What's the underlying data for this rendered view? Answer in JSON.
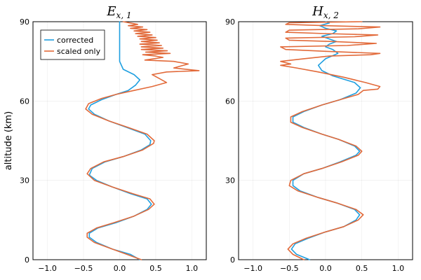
{
  "chart_data": [
    {
      "type": "line",
      "title": "E",
      "title_subscript": "x, 1",
      "xlabel": "",
      "ylabel": "altitude (km)",
      "xlim": [
        -1.2,
        1.2
      ],
      "ylim": [
        0,
        90
      ],
      "xticks": [
        -1.0,
        -0.5,
        0.0,
        0.5,
        1.0
      ],
      "xtick_labels": [
        "−1.0",
        "−0.5",
        "0.0",
        "0.5",
        "1.0"
      ],
      "yticks": [
        0,
        30,
        60,
        90
      ],
      "ytick_labels": [
        "0",
        "30",
        "60",
        "90"
      ],
      "grid": true,
      "legend": {
        "placement": "top-left",
        "entries": [
          "corrected",
          "scaled only"
        ]
      },
      "series": [
        {
          "name": "corrected",
          "color": "#1f9fe0",
          "points": [
            [
              0.28,
              0
            ],
            [
              0.15,
              2
            ],
            [
              -0.1,
              4
            ],
            [
              -0.32,
              6.5
            ],
            [
              -0.42,
              8.5
            ],
            [
              -0.42,
              10
            ],
            [
              -0.3,
              12
            ],
            [
              -0.05,
              14
            ],
            [
              0.2,
              16.5
            ],
            [
              0.38,
              19
            ],
            [
              0.44,
              21
            ],
            [
              0.38,
              23
            ],
            [
              0.15,
              25
            ],
            [
              -0.1,
              27.5
            ],
            [
              -0.32,
              30
            ],
            [
              -0.42,
              32
            ],
            [
              -0.38,
              34.5
            ],
            [
              -0.2,
              37
            ],
            [
              0.05,
              39
            ],
            [
              0.3,
              41.5
            ],
            [
              0.42,
              43.5
            ],
            [
              0.43,
              45
            ],
            [
              0.35,
              47.5
            ],
            [
              0.1,
              50
            ],
            [
              -0.15,
              52.5
            ],
            [
              -0.35,
              55
            ],
            [
              -0.43,
              57
            ],
            [
              -0.4,
              58.5
            ],
            [
              -0.25,
              60.5
            ],
            [
              -0.05,
              62.5
            ],
            [
              0.12,
              64
            ],
            [
              0.22,
              66
            ],
            [
              0.28,
              68
            ],
            [
              0.2,
              70
            ],
            [
              0.05,
              72
            ],
            [
              0.0,
              75
            ],
            [
              0.0,
              80
            ],
            [
              0.0,
              85
            ],
            [
              0.0,
              90
            ]
          ]
        },
        {
          "name": "scaled only",
          "color": "#e26a3a",
          "points": [
            [
              0.3,
              0
            ],
            [
              0.1,
              2
            ],
            [
              -0.15,
              4.5
            ],
            [
              -0.35,
              6.5
            ],
            [
              -0.45,
              8.5
            ],
            [
              -0.45,
              10
            ],
            [
              -0.32,
              12
            ],
            [
              -0.08,
              14
            ],
            [
              0.2,
              16.5
            ],
            [
              0.4,
              19
            ],
            [
              0.48,
              21
            ],
            [
              0.42,
              23
            ],
            [
              0.18,
              25
            ],
            [
              -0.1,
              27.5
            ],
            [
              -0.35,
              30
            ],
            [
              -0.45,
              32.5
            ],
            [
              -0.4,
              34.5
            ],
            [
              -0.22,
              37
            ],
            [
              0.05,
              39
            ],
            [
              0.32,
              41.5
            ],
            [
              0.47,
              44
            ],
            [
              0.48,
              45
            ],
            [
              0.38,
              47.5
            ],
            [
              0.12,
              50
            ],
            [
              -0.15,
              52.5
            ],
            [
              -0.38,
              55
            ],
            [
              -0.47,
              57
            ],
            [
              -0.43,
              59
            ],
            [
              -0.25,
              61
            ],
            [
              -0.05,
              62.5
            ],
            [
              0.2,
              64
            ],
            [
              0.45,
              65.5
            ],
            [
              0.65,
              67
            ],
            [
              0.55,
              68.5
            ],
            [
              0.45,
              70
            ],
            [
              0.65,
              71
            ],
            [
              1.1,
              71.5
            ],
            [
              0.75,
              72.5
            ],
            [
              0.95,
              74
            ],
            [
              0.75,
              75
            ],
            [
              0.35,
              75.5
            ],
            [
              0.6,
              76.5
            ],
            [
              0.5,
              77
            ],
            [
              0.32,
              77.5
            ],
            [
              0.7,
              78
            ],
            [
              0.36,
              78.5
            ],
            [
              0.66,
              79
            ],
            [
              0.3,
              79.5
            ],
            [
              0.6,
              80
            ],
            [
              0.3,
              80.5
            ],
            [
              0.58,
              81
            ],
            [
              0.28,
              81.5
            ],
            [
              0.55,
              82
            ],
            [
              0.3,
              82.5
            ],
            [
              0.52,
              83
            ],
            [
              0.28,
              83.5
            ],
            [
              0.5,
              84
            ],
            [
              0.25,
              84.5
            ],
            [
              0.45,
              85
            ],
            [
              0.22,
              85.5
            ],
            [
              0.42,
              86
            ],
            [
              0.2,
              86.5
            ],
            [
              0.38,
              87
            ],
            [
              0.15,
              87.5
            ],
            [
              0.32,
              88
            ],
            [
              0.12,
              88.5
            ],
            [
              0.25,
              89
            ],
            [
              0.05,
              90
            ]
          ]
        }
      ]
    },
    {
      "type": "line",
      "title": "H",
      "title_subscript": "x, 2",
      "xlabel": "",
      "ylabel": "",
      "xlim": [
        -1.2,
        1.2
      ],
      "ylim": [
        0,
        90
      ],
      "xticks": [
        -1.0,
        -0.5,
        0.0,
        0.5,
        1.0
      ],
      "xtick_labels": [
        "−1.0",
        "−0.5",
        "0.0",
        "0.5",
        "1.0"
      ],
      "yticks": [
        0,
        30,
        60,
        90
      ],
      "ytick_labels": [
        "0",
        "30",
        "60",
        "90"
      ],
      "grid": true,
      "series": [
        {
          "name": "corrected",
          "color": "#1f9fe0",
          "points": [
            [
              -0.22,
              0
            ],
            [
              -0.4,
              2
            ],
            [
              -0.47,
              4
            ],
            [
              -0.42,
              6
            ],
            [
              -0.25,
              8
            ],
            [
              0.0,
              10.5
            ],
            [
              0.25,
              12.5
            ],
            [
              0.42,
              15
            ],
            [
              0.47,
              17
            ],
            [
              0.4,
              19
            ],
            [
              0.15,
              21.5
            ],
            [
              -0.1,
              23.5
            ],
            [
              -0.35,
              26
            ],
            [
              -0.45,
              28
            ],
            [
              -0.45,
              30
            ],
            [
              -0.3,
              32.5
            ],
            [
              -0.05,
              34.5
            ],
            [
              0.2,
              37
            ],
            [
              0.42,
              39.5
            ],
            [
              0.47,
              41
            ],
            [
              0.4,
              43
            ],
            [
              0.18,
              45.5
            ],
            [
              -0.05,
              47.5
            ],
            [
              -0.3,
              50
            ],
            [
              -0.45,
              52
            ],
            [
              -0.45,
              54
            ],
            [
              -0.3,
              56
            ],
            [
              -0.05,
              58.5
            ],
            [
              0.2,
              60.5
            ],
            [
              0.42,
              63
            ],
            [
              0.48,
              65
            ],
            [
              0.4,
              67
            ],
            [
              0.1,
              69.5
            ],
            [
              -0.05,
              71.5
            ],
            [
              -0.1,
              73.5
            ],
            [
              0.0,
              76
            ],
            [
              0.17,
              78
            ],
            [
              0.1,
              79.5
            ],
            [
              0.0,
              80.5
            ],
            [
              0.05,
              81.5
            ],
            [
              0.15,
              82.5
            ],
            [
              0.05,
              83.5
            ],
            [
              -0.05,
              84.5
            ],
            [
              0.1,
              85.5
            ],
            [
              0.15,
              86.5
            ],
            [
              0.0,
              87.5
            ],
            [
              -0.08,
              88.5
            ],
            [
              0.05,
              89.5
            ],
            [
              0.0,
              90
            ]
          ]
        },
        {
          "name": "scaled only",
          "color": "#e26a3a",
          "points": [
            [
              -0.3,
              0
            ],
            [
              -0.45,
              2
            ],
            [
              -0.52,
              4
            ],
            [
              -0.45,
              6
            ],
            [
              -0.28,
              8
            ],
            [
              0.0,
              10.5
            ],
            [
              0.25,
              12.5
            ],
            [
              0.45,
              15
            ],
            [
              0.52,
              17
            ],
            [
              0.42,
              19
            ],
            [
              0.15,
              21.5
            ],
            [
              -0.1,
              23.5
            ],
            [
              -0.38,
              26
            ],
            [
              -0.5,
              28
            ],
            [
              -0.48,
              30
            ],
            [
              -0.3,
              32.5
            ],
            [
              -0.05,
              34.5
            ],
            [
              0.22,
              37
            ],
            [
              0.45,
              39.5
            ],
            [
              0.5,
              41
            ],
            [
              0.42,
              43
            ],
            [
              0.18,
              45.5
            ],
            [
              -0.05,
              47.5
            ],
            [
              -0.32,
              50
            ],
            [
              -0.48,
              52
            ],
            [
              -0.48,
              54
            ],
            [
              -0.32,
              56
            ],
            [
              -0.05,
              58.5
            ],
            [
              0.2,
              60.5
            ],
            [
              0.45,
              62.5
            ],
            [
              0.52,
              64
            ],
            [
              0.72,
              64.5
            ],
            [
              0.75,
              65.5
            ],
            [
              0.55,
              67
            ],
            [
              0.25,
              69
            ],
            [
              -0.1,
              71
            ],
            [
              -0.4,
              72.5
            ],
            [
              -0.62,
              73.5
            ],
            [
              -0.48,
              74
            ],
            [
              -0.62,
              75
            ],
            [
              -0.3,
              76
            ],
            [
              0.05,
              77
            ],
            [
              0.62,
              77.5
            ],
            [
              0.75,
              78
            ],
            [
              0.0,
              78.8
            ],
            [
              -0.55,
              79.5
            ],
            [
              -0.62,
              80.5
            ],
            [
              0.3,
              81
            ],
            [
              0.7,
              81.8
            ],
            [
              0.1,
              82.5
            ],
            [
              -0.5,
              83
            ],
            [
              -0.55,
              83.8
            ],
            [
              0.4,
              84.3
            ],
            [
              0.72,
              85
            ],
            [
              0.0,
              85.5
            ],
            [
              -0.55,
              86
            ],
            [
              -0.5,
              86.8
            ],
            [
              0.45,
              87.3
            ],
            [
              0.75,
              88
            ],
            [
              0.0,
              88.5
            ],
            [
              -0.55,
              89
            ],
            [
              -0.5,
              89.6
            ],
            [
              0.5,
              90
            ]
          ]
        }
      ]
    }
  ]
}
